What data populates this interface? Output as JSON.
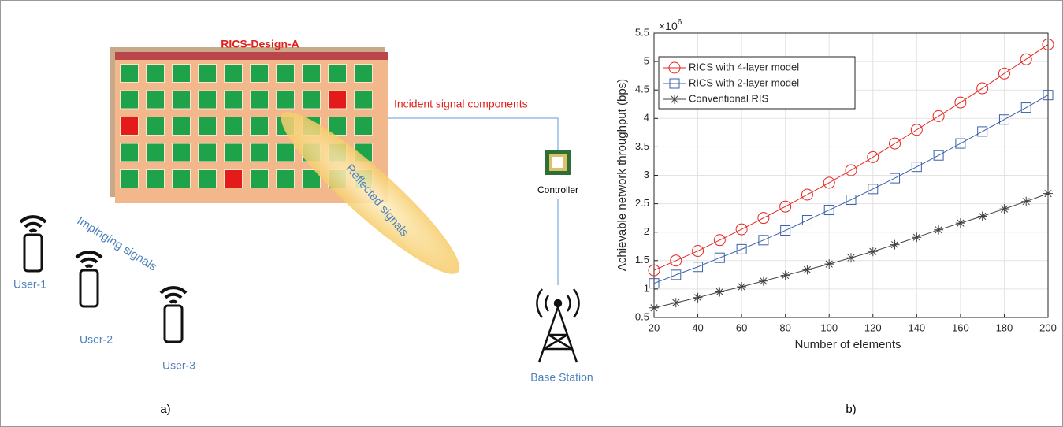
{
  "diagram": {
    "board_title": "RICS-Design-A",
    "incident_label": "Incident signal components",
    "reflected_label": "Reflected signals",
    "impinging_label": "Impinging signals",
    "controller_label": "Controller",
    "base_station_label": "Base Station",
    "users": [
      "User-1",
      "User-2",
      "User-3"
    ],
    "panel_label": "a)"
  },
  "chart_data": {
    "type": "line",
    "panel_label": "b)",
    "x_label": "Number of elements",
    "y_label": "Achievable network throughput (bps)",
    "y_scale_base": "×10",
    "y_scale_exponent": "6",
    "x": [
      20,
      30,
      40,
      50,
      60,
      70,
      80,
      90,
      100,
      110,
      120,
      130,
      140,
      150,
      160,
      170,
      180,
      190,
      200
    ],
    "series": [
      {
        "name": "RICS with 4-layer model",
        "color": "#e8251f",
        "marker": "circle",
        "values": [
          1.33,
          1.5,
          1.67,
          1.86,
          2.05,
          2.25,
          2.45,
          2.66,
          2.87,
          3.09,
          3.32,
          3.56,
          3.8,
          4.04,
          4.28,
          4.53,
          4.79,
          5.04,
          5.3
        ]
      },
      {
        "name": "RICS with 2-layer model",
        "color": "#3a5fa8",
        "marker": "square",
        "values": [
          1.1,
          1.25,
          1.39,
          1.55,
          1.7,
          1.86,
          2.03,
          2.21,
          2.39,
          2.57,
          2.76,
          2.95,
          3.15,
          3.35,
          3.56,
          3.77,
          3.98,
          4.19,
          4.41
        ]
      },
      {
        "name": "Conventional RIS",
        "color": "#404040",
        "marker": "star",
        "values": [
          0.67,
          0.76,
          0.85,
          0.95,
          1.04,
          1.14,
          1.24,
          1.34,
          1.44,
          1.55,
          1.66,
          1.78,
          1.91,
          2.04,
          2.16,
          2.28,
          2.41,
          2.54,
          2.68
        ]
      }
    ],
    "xlim": [
      20,
      200
    ],
    "xticks": [
      20,
      40,
      60,
      80,
      100,
      120,
      140,
      160,
      180,
      200
    ],
    "ylim": [
      0.5,
      5.5
    ],
    "yticks": [
      0.5,
      1,
      1.5,
      2,
      2.5,
      3,
      3.5,
      4,
      4.5,
      5,
      5.5
    ],
    "grid": true,
    "legend": "upper-left"
  }
}
